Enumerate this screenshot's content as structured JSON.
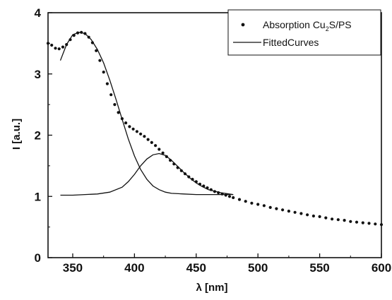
{
  "chart_data": {
    "type": "scatter",
    "title": "",
    "xlabel": "λ [nm]",
    "ylabel": "I [a.u.]",
    "xlim": [
      330,
      600
    ],
    "ylim": [
      0,
      4
    ],
    "xticks": [
      "350",
      "400",
      "450",
      "500",
      "550",
      "600"
    ],
    "yticks": [
      "0",
      "1",
      "2",
      "3",
      "4"
    ],
    "grid": false,
    "legend_position": "top-right",
    "legend": {
      "dots_label_pre": "Absorption Cu",
      "dots_label_sub": "2",
      "dots_label_post": "S/PS",
      "line_label": "FittedCurves"
    },
    "series": [
      {
        "role": "absorption-dots",
        "marker": "dot",
        "x": [
          330,
          333,
          336,
          339,
          342,
          345,
          348,
          351,
          354,
          357,
          360,
          363,
          366,
          369,
          372,
          375,
          378,
          381,
          384,
          387,
          390,
          393,
          396,
          399,
          402,
          405,
          408,
          411,
          414,
          417,
          420,
          423,
          426,
          429,
          432,
          435,
          438,
          441,
          444,
          447,
          450,
          453,
          456,
          459,
          462,
          465,
          468,
          471,
          474,
          477,
          480,
          485,
          490,
          495,
          500,
          505,
          510,
          515,
          520,
          525,
          530,
          535,
          540,
          545,
          550,
          555,
          560,
          565,
          570,
          575,
          580,
          585,
          590,
          595,
          600
        ],
        "y": [
          3.5,
          3.47,
          3.42,
          3.41,
          3.44,
          3.48,
          3.56,
          3.63,
          3.67,
          3.68,
          3.66,
          3.6,
          3.51,
          3.38,
          3.22,
          3.03,
          2.84,
          2.66,
          2.5,
          2.37,
          2.27,
          2.2,
          2.14,
          2.1,
          2.06,
          2.02,
          1.98,
          1.93,
          1.88,
          1.83,
          1.77,
          1.71,
          1.65,
          1.59,
          1.53,
          1.47,
          1.42,
          1.37,
          1.32,
          1.28,
          1.24,
          1.2,
          1.17,
          1.14,
          1.11,
          1.08,
          1.06,
          1.04,
          1.02,
          1.0,
          0.98,
          0.95,
          0.92,
          0.89,
          0.87,
          0.85,
          0.82,
          0.8,
          0.78,
          0.76,
          0.74,
          0.72,
          0.7,
          0.68,
          0.67,
          0.65,
          0.63,
          0.62,
          0.61,
          0.59,
          0.58,
          0.57,
          0.56,
          0.55,
          0.54
        ]
      },
      {
        "role": "fitted-curve-1",
        "marker": "line",
        "x": [
          340,
          345,
          350,
          355,
          360,
          365,
          370,
          375,
          380,
          385,
          390,
          395,
          400,
          405,
          410,
          415,
          420,
          425,
          430,
          440,
          450,
          460,
          470,
          480
        ],
        "y": [
          3.22,
          3.48,
          3.64,
          3.68,
          3.66,
          3.56,
          3.4,
          3.18,
          2.9,
          2.59,
          2.26,
          1.94,
          1.66,
          1.44,
          1.28,
          1.17,
          1.11,
          1.07,
          1.05,
          1.04,
          1.03,
          1.03,
          1.03,
          1.03
        ]
      },
      {
        "role": "fitted-curve-2",
        "marker": "line",
        "x": [
          340,
          350,
          360,
          370,
          380,
          390,
          395,
          400,
          405,
          410,
          415,
          420,
          425,
          430,
          435,
          440,
          445,
          450,
          455,
          460,
          470,
          480
        ],
        "y": [
          1.02,
          1.02,
          1.03,
          1.04,
          1.07,
          1.15,
          1.24,
          1.36,
          1.5,
          1.61,
          1.68,
          1.7,
          1.67,
          1.59,
          1.49,
          1.39,
          1.3,
          1.22,
          1.16,
          1.11,
          1.06,
          1.03
        ]
      }
    ]
  }
}
